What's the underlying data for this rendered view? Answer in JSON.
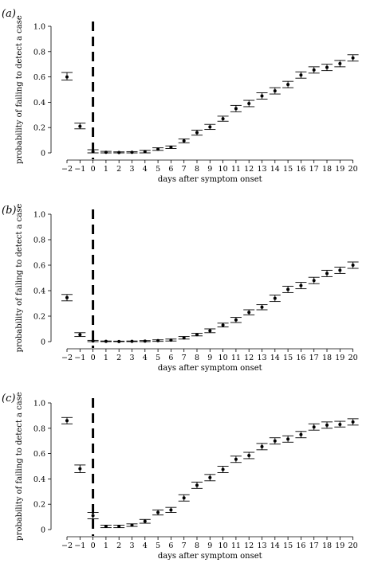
{
  "chart_data": [
    {
      "type": "scatter",
      "panel_label": "(a)",
      "xlabel": "days after symptom onset",
      "ylabel": "probability of failing to detect a case",
      "ylim": [
        0,
        1
      ],
      "y_ticks": [
        "0",
        "0.2",
        "0.4",
        "0.6",
        "0.8",
        "1.0"
      ],
      "y_tick_values": [
        0,
        0.2,
        0.4,
        0.6,
        0.8,
        1.0
      ],
      "x_ticks": [
        "−2",
        "−1",
        "0",
        "1",
        "2",
        "3",
        "4",
        "5",
        "6",
        "7",
        "8",
        "9",
        "10",
        "11",
        "12",
        "13",
        "14",
        "15",
        "16",
        "17",
        "18",
        "19",
        "20"
      ],
      "x_tick_values": [
        -2,
        -1,
        0,
        1,
        2,
        3,
        4,
        5,
        6,
        7,
        8,
        9,
        10,
        11,
        12,
        13,
        14,
        15,
        16,
        17,
        18,
        19,
        20
      ],
      "onset_day": 0,
      "x": [
        -2,
        -1,
        0,
        1,
        2,
        3,
        4,
        5,
        6,
        7,
        8,
        9,
        10,
        11,
        12,
        13,
        14,
        15,
        16,
        17,
        18,
        19,
        20
      ],
      "y": [
        0.6,
        0.21,
        0.01,
        0.005,
        0.003,
        0.005,
        0.01,
        0.03,
        0.045,
        0.095,
        0.16,
        0.205,
        0.27,
        0.35,
        0.39,
        0.45,
        0.49,
        0.54,
        0.615,
        0.655,
        0.675,
        0.705,
        0.75
      ],
      "y_lower": [
        0.575,
        0.19,
        0.0,
        0.0,
        0.0,
        0.0,
        0.0,
        0.02,
        0.035,
        0.08,
        0.14,
        0.185,
        0.25,
        0.325,
        0.365,
        0.425,
        0.465,
        0.515,
        0.59,
        0.63,
        0.65,
        0.68,
        0.725
      ],
      "y_upper": [
        0.635,
        0.235,
        0.025,
        0.012,
        0.008,
        0.01,
        0.02,
        0.04,
        0.055,
        0.11,
        0.18,
        0.225,
        0.29,
        0.375,
        0.415,
        0.475,
        0.515,
        0.565,
        0.64,
        0.68,
        0.7,
        0.73,
        0.775
      ]
    },
    {
      "type": "scatter",
      "panel_label": "(b)",
      "xlabel": "days after symptom onset",
      "ylabel": "probability of failing to detect a case",
      "ylim": [
        0,
        1
      ],
      "y_ticks": [
        "0",
        "0.2",
        "0.4",
        "0.6",
        "0.8",
        "1.0"
      ],
      "y_tick_values": [
        0,
        0.2,
        0.4,
        0.6,
        0.8,
        1.0
      ],
      "x_ticks": [
        "−2",
        "−1",
        "0",
        "1",
        "2",
        "3",
        "4",
        "5",
        "6",
        "7",
        "8",
        "9",
        "10",
        "11",
        "12",
        "13",
        "14",
        "15",
        "16",
        "17",
        "18",
        "19",
        "20"
      ],
      "x_tick_values": [
        -2,
        -1,
        0,
        1,
        2,
        3,
        4,
        5,
        6,
        7,
        8,
        9,
        10,
        11,
        12,
        13,
        14,
        15,
        16,
        17,
        18,
        19,
        20
      ],
      "onset_day": 0,
      "x": [
        -2,
        -1,
        0,
        1,
        2,
        3,
        4,
        5,
        6,
        7,
        8,
        9,
        10,
        11,
        12,
        13,
        14,
        15,
        16,
        17,
        18,
        19,
        20
      ],
      "y": [
        0.345,
        0.055,
        0.005,
        0.002,
        0.001,
        0.002,
        0.004,
        0.008,
        0.012,
        0.03,
        0.055,
        0.085,
        0.13,
        0.17,
        0.23,
        0.27,
        0.34,
        0.41,
        0.44,
        0.48,
        0.535,
        0.56,
        0.6
      ],
      "y_lower": [
        0.32,
        0.04,
        0.0,
        0.0,
        0.0,
        0.0,
        0.0,
        0.002,
        0.005,
        0.02,
        0.045,
        0.07,
        0.115,
        0.15,
        0.21,
        0.25,
        0.315,
        0.385,
        0.415,
        0.455,
        0.51,
        0.535,
        0.575
      ],
      "y_upper": [
        0.37,
        0.07,
        0.01,
        0.005,
        0.004,
        0.005,
        0.008,
        0.014,
        0.02,
        0.04,
        0.065,
        0.1,
        0.145,
        0.19,
        0.25,
        0.29,
        0.365,
        0.435,
        0.465,
        0.505,
        0.56,
        0.585,
        0.625
      ]
    },
    {
      "type": "scatter",
      "panel_label": "(c)",
      "xlabel": "days after symptom onset",
      "ylabel": "probability of failing to detect a case",
      "ylim": [
        0,
        1
      ],
      "y_ticks": [
        "0",
        "0.2",
        "0.4",
        "0.6",
        "0.8",
        "1.0"
      ],
      "y_tick_values": [
        0,
        0.2,
        0.4,
        0.6,
        0.8,
        1.0
      ],
      "x_ticks": [
        "−2",
        "−1",
        "0",
        "1",
        "2",
        "3",
        "4",
        "5",
        "6",
        "7",
        "8",
        "9",
        "10",
        "11",
        "12",
        "13",
        "14",
        "15",
        "16",
        "17",
        "18",
        "19",
        "20"
      ],
      "x_tick_values": [
        -2,
        -1,
        0,
        1,
        2,
        3,
        4,
        5,
        6,
        7,
        8,
        9,
        10,
        11,
        12,
        13,
        14,
        15,
        16,
        17,
        18,
        19,
        20
      ],
      "onset_day": 0,
      "x": [
        -2,
        -1,
        0,
        1,
        2,
        3,
        4,
        5,
        6,
        7,
        8,
        9,
        10,
        11,
        12,
        13,
        14,
        15,
        16,
        17,
        18,
        19,
        20
      ],
      "y": [
        0.86,
        0.48,
        0.11,
        0.025,
        0.025,
        0.035,
        0.065,
        0.135,
        0.155,
        0.25,
        0.35,
        0.41,
        0.475,
        0.555,
        0.585,
        0.655,
        0.7,
        0.715,
        0.75,
        0.81,
        0.825,
        0.83,
        0.85
      ],
      "y_lower": [
        0.835,
        0.45,
        0.085,
        0.015,
        0.015,
        0.025,
        0.05,
        0.115,
        0.135,
        0.225,
        0.325,
        0.385,
        0.45,
        0.53,
        0.56,
        0.63,
        0.675,
        0.69,
        0.725,
        0.785,
        0.8,
        0.81,
        0.825
      ],
      "y_upper": [
        0.885,
        0.51,
        0.135,
        0.035,
        0.035,
        0.045,
        0.08,
        0.155,
        0.175,
        0.275,
        0.375,
        0.435,
        0.5,
        0.58,
        0.61,
        0.68,
        0.725,
        0.74,
        0.775,
        0.835,
        0.85,
        0.855,
        0.875
      ]
    }
  ]
}
